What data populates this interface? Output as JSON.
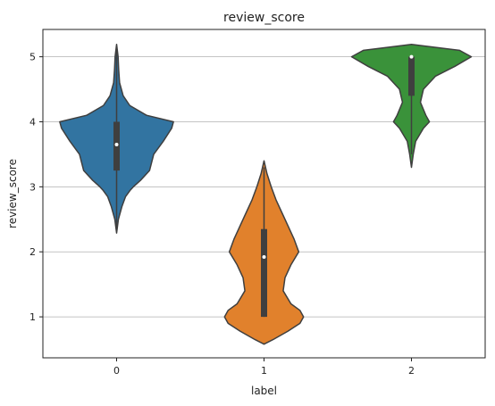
{
  "chart_data": {
    "type": "violin",
    "title": "review_score",
    "xlabel": "label",
    "ylabel": "review_score",
    "categories": [
      "0",
      "1",
      "2"
    ],
    "ylim": [
      0.37,
      5.42
    ],
    "yticks": [
      1,
      2,
      3,
      4,
      5
    ],
    "grid": "horizontal",
    "violins": [
      {
        "category": "0",
        "color": "#3274a1",
        "min": 2.29,
        "max": 5.19,
        "q1": 3.25,
        "median": 3.65,
        "q3": 4.0,
        "whisker_low": 2.35,
        "whisker_high": 5.12,
        "density": [
          [
            2.29,
            0.0
          ],
          [
            2.5,
            0.03
          ],
          [
            2.7,
            0.09
          ],
          [
            2.85,
            0.15
          ],
          [
            2.95,
            0.23
          ],
          [
            3.0,
            0.28
          ],
          [
            3.1,
            0.4
          ],
          [
            3.25,
            0.55
          ],
          [
            3.5,
            0.62
          ],
          [
            3.7,
            0.78
          ],
          [
            3.9,
            0.92
          ],
          [
            4.0,
            0.95
          ],
          [
            4.1,
            0.5
          ],
          [
            4.25,
            0.22
          ],
          [
            4.4,
            0.11
          ],
          [
            4.6,
            0.05
          ],
          [
            4.8,
            0.035
          ],
          [
            5.0,
            0.025
          ],
          [
            5.19,
            0.0
          ]
        ]
      },
      {
        "category": "1",
        "color": "#e1812c",
        "min": 0.58,
        "max": 3.4,
        "q1": 1.0,
        "median": 1.92,
        "q3": 2.35,
        "whisker_low": 1.0,
        "whisker_high": 3.3,
        "density": [
          [
            0.58,
            0.0
          ],
          [
            0.65,
            0.15
          ],
          [
            0.78,
            0.4
          ],
          [
            0.9,
            0.6
          ],
          [
            1.0,
            0.66
          ],
          [
            1.1,
            0.6
          ],
          [
            1.2,
            0.45
          ],
          [
            1.4,
            0.32
          ],
          [
            1.6,
            0.35
          ],
          [
            1.8,
            0.45
          ],
          [
            2.0,
            0.58
          ],
          [
            2.2,
            0.5
          ],
          [
            2.4,
            0.4
          ],
          [
            2.6,
            0.3
          ],
          [
            2.8,
            0.2
          ],
          [
            3.0,
            0.12
          ],
          [
            3.2,
            0.05
          ],
          [
            3.4,
            0.0
          ]
        ]
      },
      {
        "category": "2",
        "color": "#3a923a",
        "min": 3.3,
        "max": 5.19,
        "q1": 4.4,
        "median": 5.0,
        "q3": 5.0,
        "whisker_low": 3.5,
        "whisker_high": 5.0,
        "density": [
          [
            3.3,
            0.0
          ],
          [
            3.5,
            0.03
          ],
          [
            3.7,
            0.07
          ],
          [
            3.9,
            0.2
          ],
          [
            4.0,
            0.3
          ],
          [
            4.1,
            0.24
          ],
          [
            4.3,
            0.15
          ],
          [
            4.5,
            0.2
          ],
          [
            4.7,
            0.4
          ],
          [
            4.85,
            0.72
          ],
          [
            5.0,
            1.0
          ],
          [
            5.1,
            0.8
          ],
          [
            5.19,
            0.0
          ]
        ]
      }
    ]
  }
}
